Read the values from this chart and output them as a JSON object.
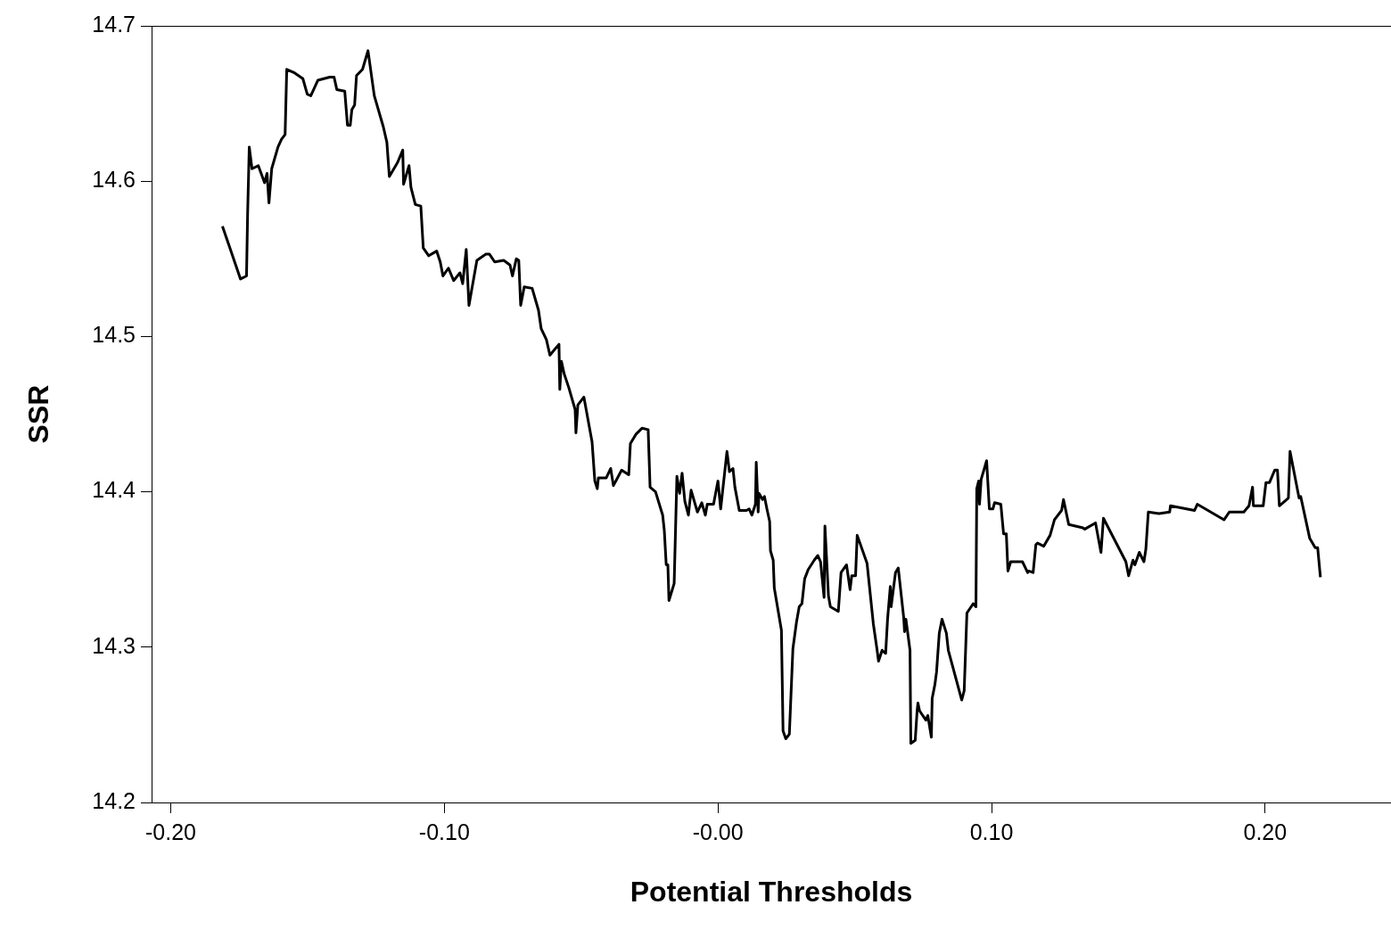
{
  "chart_data": {
    "type": "line",
    "xlabel": "Potential Thresholds",
    "ylabel": "SSR",
    "color": "#000000",
    "xlim": [
      -0.207,
      0.246
    ],
    "ylim": [
      14.2,
      14.7
    ],
    "xticks": [
      {
        "value": -0.2,
        "label": "-0.20"
      },
      {
        "value": -0.1,
        "label": "-0.10"
      },
      {
        "value": 0,
        "label": "-0.00"
      },
      {
        "value": 0.1,
        "label": "0.10"
      },
      {
        "value": 0.2,
        "label": "0.20"
      }
    ],
    "yticks": [
      14.2,
      14.3,
      14.4,
      14.5,
      14.6,
      14.7
    ],
    "x": [
      -0.1811,
      -0.1745,
      -0.1723,
      -0.1719,
      -0.1713,
      -0.1703,
      -0.168,
      -0.1657,
      -0.1648,
      -0.1641,
      -0.1631,
      -0.1608,
      -0.1595,
      -0.1582,
      -0.1576,
      -0.155,
      -0.1517,
      -0.1501,
      -0.1488,
      -0.1462,
      -0.1419,
      -0.1403,
      -0.1393,
      -0.1364,
      -0.1354,
      -0.1344,
      -0.1338,
      -0.1328,
      -0.1321,
      -0.1299,
      -0.1279,
      -0.1256,
      -0.1223,
      -0.121,
      -0.1201,
      -0.1171,
      -0.1152,
      -0.1149,
      -0.1129,
      -0.1122,
      -0.1106,
      -0.1086,
      -0.1077,
      -0.1057,
      -0.1028,
      -0.1015,
      -0.1005,
      -0.0985,
      -0.0966,
      -0.0943,
      -0.0933,
      -0.092,
      -0.091,
      -0.0881,
      -0.0848,
      -0.0835,
      -0.0816,
      -0.0783,
      -0.076,
      -0.0751,
      -0.0737,
      -0.0728,
      -0.0721,
      -0.0708,
      -0.0679,
      -0.0656,
      -0.0646,
      -0.0627,
      -0.0614,
      -0.0581,
      -0.0578,
      -0.0572,
      -0.0562,
      -0.0545,
      -0.0522,
      -0.0519,
      -0.0512,
      -0.049,
      -0.046,
      -0.045,
      -0.0441,
      -0.0437,
      -0.0408,
      -0.0392,
      -0.0382,
      -0.0352,
      -0.0326,
      -0.032,
      -0.03,
      -0.0277,
      -0.0255,
      -0.0248,
      -0.0228,
      -0.0202,
      -0.0196,
      -0.0189,
      -0.0183,
      -0.0179,
      -0.016,
      -0.015,
      -0.014,
      -0.0131,
      -0.0121,
      -0.0108,
      -0.0098,
      -0.0075,
      -0.0059,
      -0.0046,
      -0.0039,
      -0.0016,
      0.0,
      0.001,
      0.0033,
      0.0042,
      0.0055,
      0.0062,
      0.0078,
      0.0104,
      0.0114,
      0.0124,
      0.0137,
      0.014,
      0.0147,
      0.015,
      0.0163,
      0.017,
      0.0179,
      0.0189,
      0.0192,
      0.0202,
      0.0206,
      0.0232,
      0.0238,
      0.0248,
      0.0261,
      0.0274,
      0.0287,
      0.0297,
      0.0307,
      0.0317,
      0.033,
      0.0352,
      0.0365,
      0.0375,
      0.0388,
      0.0391,
      0.0404,
      0.0411,
      0.044,
      0.045,
      0.047,
      0.0483,
      0.0489,
      0.0503,
      0.0509,
      0.0545,
      0.0568,
      0.0581,
      0.0587,
      0.06,
      0.0613,
      0.062,
      0.063,
      0.0633,
      0.0649,
      0.0659,
      0.0679,
      0.0682,
      0.0687,
      0.0702,
      0.0705,
      0.0721,
      0.0728,
      0.0731,
      0.0737,
      0.076,
      0.0767,
      0.078,
      0.0783,
      0.0793,
      0.0799,
      0.0809,
      0.0819,
      0.0835,
      0.0842,
      0.0891,
      0.09,
      0.091,
      0.0933,
      0.0943,
      0.0946,
      0.0953,
      0.0956,
      0.0962,
      0.0982,
      0.0992,
      0.1005,
      0.1011,
      0.1034,
      0.1044,
      0.1054,
      0.106,
      0.107,
      0.1113,
      0.1132,
      0.1136,
      0.1152,
      0.1162,
      0.1168,
      0.1191,
      0.1214,
      0.123,
      0.1256,
      0.1263,
      0.1282,
      0.1331,
      0.1341,
      0.138,
      0.14,
      0.1409,
      0.1491,
      0.1501,
      0.1517,
      0.1524,
      0.154,
      0.1557,
      0.1564,
      0.1573,
      0.1612,
      0.1651,
      0.1654,
      0.1742,
      0.1752,
      0.185,
      0.1869,
      0.1922,
      0.1941,
      0.1954,
      0.1957,
      0.1993,
      0.2003,
      0.2016,
      0.2035,
      0.2045,
      0.2052,
      0.2085,
      0.2091,
      0.2124,
      0.213,
      0.2163,
      0.2183,
      0.2192,
      0.2202
    ],
    "values": [
      14.571,
      14.537,
      14.539,
      14.579,
      14.622,
      14.608,
      14.61,
      14.599,
      14.605,
      14.586,
      14.608,
      14.622,
      14.627,
      14.63,
      14.672,
      14.67,
      14.666,
      14.656,
      14.655,
      14.665,
      14.667,
      14.667,
      14.659,
      14.658,
      14.636,
      14.636,
      14.646,
      14.649,
      14.668,
      14.672,
      14.684,
      14.655,
      14.635,
      14.625,
      14.603,
      14.612,
      14.62,
      14.598,
      14.61,
      14.596,
      14.585,
      14.584,
      14.557,
      14.552,
      14.555,
      14.548,
      14.539,
      14.544,
      14.536,
      14.541,
      14.534,
      14.556,
      14.52,
      14.549,
      14.553,
      14.553,
      14.548,
      14.549,
      14.546,
      14.539,
      14.55,
      14.549,
      14.52,
      14.532,
      14.531,
      14.517,
      14.505,
      14.498,
      14.488,
      14.495,
      14.466,
      14.484,
      14.476,
      14.467,
      14.453,
      14.438,
      14.456,
      14.461,
      14.432,
      14.407,
      14.402,
      14.409,
      14.409,
      14.415,
      14.404,
      14.414,
      14.411,
      14.431,
      14.437,
      14.441,
      14.44,
      14.403,
      14.4,
      14.385,
      14.375,
      14.353,
      14.353,
      14.33,
      14.341,
      14.41,
      14.399,
      14.412,
      14.394,
      14.385,
      14.401,
      14.387,
      14.393,
      14.385,
      14.392,
      14.392,
      14.407,
      14.389,
      14.426,
      14.413,
      14.415,
      14.403,
      14.388,
      14.388,
      14.389,
      14.385,
      14.392,
      14.419,
      14.387,
      14.399,
      14.395,
      14.397,
      14.389,
      14.381,
      14.362,
      14.356,
      14.338,
      14.311,
      14.246,
      14.241,
      14.244,
      14.299,
      14.316,
      14.326,
      14.328,
      14.344,
      14.35,
      14.356,
      14.359,
      14.355,
      14.332,
      14.378,
      14.333,
      14.326,
      14.323,
      14.348,
      14.353,
      14.337,
      14.346,
      14.346,
      14.372,
      14.354,
      14.315,
      14.299,
      14.291,
      14.298,
      14.296,
      14.318,
      14.339,
      14.326,
      14.348,
      14.351,
      14.319,
      14.31,
      14.318,
      14.298,
      14.238,
      14.24,
      14.259,
      14.264,
      14.259,
      14.253,
      14.256,
      14.242,
      14.267,
      14.276,
      14.284,
      14.309,
      14.318,
      14.309,
      14.298,
      14.266,
      14.272,
      14.322,
      14.328,
      14.326,
      14.402,
      14.407,
      14.392,
      14.408,
      14.42,
      14.389,
      14.389,
      14.393,
      14.392,
      14.373,
      14.373,
      14.349,
      14.355,
      14.355,
      14.348,
      14.349,
      14.348,
      14.366,
      14.367,
      14.365,
      14.372,
      14.382,
      14.388,
      14.395,
      14.379,
      14.377,
      14.376,
      14.38,
      14.361,
      14.383,
      14.355,
      14.346,
      14.356,
      14.353,
      14.361,
      14.355,
      14.363,
      14.387,
      14.386,
      14.387,
      14.391,
      14.388,
      14.392,
      14.382,
      14.387,
      14.387,
      14.391,
      14.403,
      14.391,
      14.391,
      14.406,
      14.406,
      14.414,
      14.414,
      14.391,
      14.396,
      14.426,
      14.396,
      14.397,
      14.37,
      14.364,
      14.364,
      14.345
    ]
  }
}
